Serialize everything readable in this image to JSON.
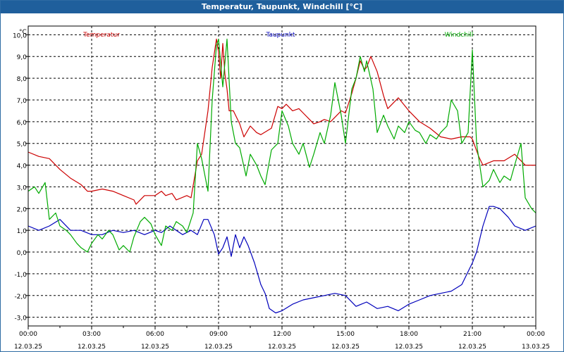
{
  "window": {
    "title": "Temperatur, Taupunkt, Windchill [°C]"
  },
  "chart_data": {
    "type": "line",
    "title": "Temperatur, Taupunkt, Windchill [°C]",
    "ylabel": "°C",
    "xlabel": "",
    "ylim": [
      -3.4,
      10.4
    ],
    "xlim": [
      0,
      24
    ],
    "grid": true,
    "yticks": [
      {
        "value": 10,
        "label": "10,0"
      },
      {
        "value": 9,
        "label": "9,0"
      },
      {
        "value": 8,
        "label": "8,0"
      },
      {
        "value": 7,
        "label": "7,0"
      },
      {
        "value": 6,
        "label": "6,0"
      },
      {
        "value": 5,
        "label": "5,0"
      },
      {
        "value": 4,
        "label": "4,0"
      },
      {
        "value": 3,
        "label": "3,0"
      },
      {
        "value": 2,
        "label": "2,0"
      },
      {
        "value": 1,
        "label": "1,0"
      },
      {
        "value": 0,
        "label": "0,0"
      },
      {
        "value": -1,
        "label": "-1,0"
      },
      {
        "value": -2,
        "label": "-2,0"
      },
      {
        "value": -3,
        "label": "-3,0"
      }
    ],
    "xticks": [
      {
        "value": 0,
        "time": "00:00",
        "date": "12.03.25"
      },
      {
        "value": 3,
        "time": "03:00",
        "date": "12.03.25"
      },
      {
        "value": 6,
        "time": "06:00",
        "date": "12.03.25"
      },
      {
        "value": 9,
        "time": "09:00",
        "date": "12.03.25"
      },
      {
        "value": 12,
        "time": "12:00",
        "date": "12.03.25"
      },
      {
        "value": 15,
        "time": "15:00",
        "date": "12.03.25"
      },
      {
        "value": 18,
        "time": "18:00",
        "date": "12.03.25"
      },
      {
        "value": 21,
        "time": "21:00",
        "date": "12.03.25"
      },
      {
        "value": 24,
        "time": "00:00",
        "date": "13.03.25"
      }
    ],
    "series": [
      {
        "name": "Temperatur",
        "color": "#cc0000",
        "legend_pos": "top-left",
        "x": [
          0,
          0.5,
          1,
          1.5,
          2,
          2.5,
          2.8,
          3,
          3.5,
          4,
          4.5,
          5,
          5.1,
          5.5,
          6,
          6.3,
          6.5,
          6.8,
          7,
          7.5,
          7.7,
          8,
          8.2,
          8.5,
          8.7,
          8.9,
          9,
          9.1,
          9.2,
          9.3,
          9.4,
          9.5,
          9.7,
          10,
          10.2,
          10.5,
          10.8,
          11,
          11.5,
          11.8,
          12,
          12.2,
          12.5,
          12.8,
          13,
          13.3,
          13.5,
          13.8,
          14,
          14.3,
          14.5,
          14.8,
          15,
          15.3,
          15.5,
          15.7,
          15.9,
          16,
          16.2,
          16.5,
          16.8,
          17,
          17.5,
          18,
          18.5,
          19,
          19.5,
          20,
          20.5,
          20.9,
          21,
          21.3,
          21.5,
          22,
          22.5,
          23,
          23.5,
          24
        ],
        "values": [
          4.6,
          4.4,
          4.3,
          3.8,
          3.4,
          3.1,
          2.8,
          2.8,
          2.9,
          2.8,
          2.6,
          2.4,
          2.2,
          2.6,
          2.6,
          2.8,
          2.6,
          2.7,
          2.4,
          2.6,
          2.5,
          4.2,
          4.5,
          6.5,
          8.5,
          9.8,
          9.2,
          8.0,
          9.6,
          8.2,
          7.5,
          6.5,
          6.5,
          5.9,
          5.3,
          5.8,
          5.5,
          5.4,
          5.7,
          6.7,
          6.6,
          6.8,
          6.5,
          6.6,
          6.4,
          6.1,
          5.9,
          6.0,
          6.1,
          6.0,
          6.2,
          6.5,
          6.4,
          7.3,
          8.0,
          8.8,
          8.4,
          8.5,
          9.0,
          8.3,
          7.2,
          6.6,
          7.1,
          6.5,
          6.0,
          5.7,
          5.3,
          5.2,
          5.3,
          5.3,
          5.2,
          4.4,
          4.0,
          4.2,
          4.2,
          4.5,
          4.0,
          4.0
        ]
      },
      {
        "name": "Taupunkt",
        "color": "#0000bb",
        "legend_pos": "top-center",
        "x": [
          0,
          0.5,
          1,
          1.5,
          2,
          2.5,
          3,
          3.5,
          4,
          4.5,
          5,
          5.5,
          6,
          6.3,
          6.7,
          7,
          7.3,
          7.7,
          8,
          8.3,
          8.5,
          8.8,
          9,
          9.2,
          9.4,
          9.6,
          9.8,
          10,
          10.2,
          10.4,
          10.7,
          11,
          11.2,
          11.4,
          11.7,
          12,
          12.5,
          13,
          13.5,
          14,
          14.5,
          15,
          15.5,
          16,
          16.5,
          17,
          17.5,
          18,
          18.5,
          19,
          19.5,
          20,
          20.5,
          20.8,
          21,
          21.2,
          21.5,
          21.8,
          22,
          22.3,
          22.7,
          23,
          23.5,
          24
        ],
        "values": [
          1.2,
          1.0,
          1.2,
          1.5,
          1.0,
          1.0,
          0.8,
          0.8,
          1.0,
          0.9,
          1.0,
          0.8,
          1.0,
          0.9,
          1.2,
          1.0,
          0.8,
          1.0,
          0.8,
          1.5,
          1.5,
          0.8,
          -0.1,
          0.2,
          0.7,
          -0.2,
          0.8,
          0.2,
          0.7,
          0.3,
          -0.5,
          -1.5,
          -1.9,
          -2.6,
          -2.8,
          -2.7,
          -2.4,
          -2.2,
          -2.1,
          -2.0,
          -1.9,
          -2.0,
          -2.5,
          -2.3,
          -2.6,
          -2.5,
          -2.7,
          -2.4,
          -2.2,
          -2.0,
          -1.9,
          -1.8,
          -1.5,
          -0.9,
          -0.5,
          0.0,
          1.2,
          2.1,
          2.1,
          2.0,
          1.6,
          1.2,
          1.0,
          1.2
        ]
      },
      {
        "name": "Windchill",
        "color": "#00aa00",
        "legend_pos": "top-right",
        "x": [
          0,
          0.3,
          0.5,
          0.8,
          1,
          1.3,
          1.5,
          1.8,
          2,
          2.3,
          2.5,
          2.8,
          3,
          3.3,
          3.5,
          3.8,
          4,
          4.3,
          4.5,
          4.8,
          5,
          5.3,
          5.5,
          5.8,
          6,
          6.3,
          6.5,
          6.8,
          7,
          7.3,
          7.5,
          7.8,
          8,
          8.2,
          8.5,
          8.7,
          8.9,
          9,
          9.2,
          9.4,
          9.6,
          9.8,
          10,
          10.3,
          10.5,
          10.8,
          11,
          11.2,
          11.5,
          11.8,
          12,
          12.3,
          12.5,
          12.8,
          13,
          13.3,
          13.5,
          13.8,
          14,
          14.3,
          14.5,
          14.8,
          15,
          15.3,
          15.5,
          15.7,
          15.9,
          16,
          16.3,
          16.5,
          16.8,
          17,
          17.3,
          17.5,
          17.8,
          18,
          18.3,
          18.5,
          18.8,
          19,
          19.3,
          19.5,
          19.8,
          20,
          20.3,
          20.5,
          20.8,
          21,
          21.2,
          21.5,
          21.8,
          22,
          22.3,
          22.5,
          22.8,
          23,
          23.3,
          23.5,
          23.8,
          24
        ],
        "values": [
          2.8,
          3.0,
          2.7,
          3.2,
          1.5,
          1.8,
          1.2,
          1.0,
          0.8,
          0.4,
          0.2,
          0.0,
          0.4,
          0.8,
          0.6,
          1.0,
          0.8,
          0.1,
          0.3,
          0.0,
          0.7,
          1.4,
          1.6,
          1.3,
          0.8,
          0.3,
          1.2,
          1.0,
          1.4,
          1.2,
          0.9,
          1.8,
          5.0,
          4.3,
          2.8,
          7.0,
          9.5,
          9.8,
          7.6,
          9.8,
          6.0,
          5.0,
          4.8,
          3.5,
          4.5,
          4.0,
          3.5,
          3.1,
          4.7,
          5.0,
          6.5,
          5.8,
          5.0,
          4.5,
          5.0,
          3.9,
          4.5,
          5.5,
          5.0,
          6.3,
          7.8,
          6.3,
          5.0,
          7.5,
          8.0,
          9.0,
          8.3,
          8.8,
          7.5,
          5.5,
          6.3,
          5.8,
          5.2,
          5.8,
          5.5,
          6.0,
          5.6,
          5.5,
          5.0,
          5.4,
          5.2,
          5.5,
          5.8,
          7.0,
          6.5,
          5.0,
          5.5,
          9.3,
          5.0,
          3.0,
          3.3,
          3.8,
          3.2,
          3.5,
          3.3,
          4.0,
          5.0,
          2.5,
          2.0,
          1.8
        ]
      }
    ]
  }
}
